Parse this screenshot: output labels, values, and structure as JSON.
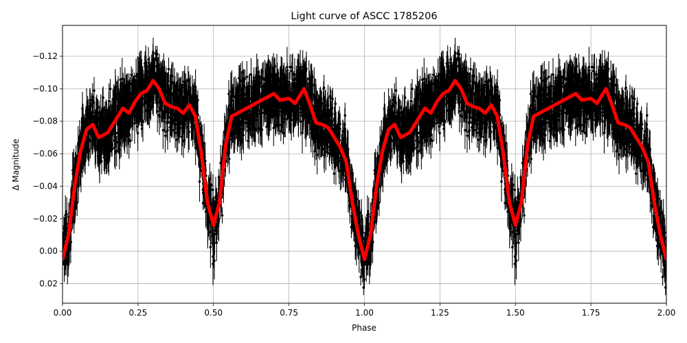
{
  "chart_data": {
    "type": "scatter",
    "title": "Light curve of ASCC 1785206",
    "xlabel": "Phase",
    "ylabel": "Δ Magnitude",
    "xlim": [
      0.0,
      2.0
    ],
    "ylim": [
      0.032,
      -0.139
    ],
    "y_inverted": true,
    "grid": true,
    "legend": null,
    "x_ticks": [
      "0.00",
      "0.25",
      "0.50",
      "0.75",
      "1.00",
      "1.25",
      "1.50",
      "1.75",
      "2.00"
    ],
    "x_tick_values": [
      0.0,
      0.25,
      0.5,
      0.75,
      1.0,
      1.25,
      1.5,
      1.75,
      2.0
    ],
    "y_ticks": [
      "−0.12",
      "−0.10",
      "−0.08",
      "−0.06",
      "−0.04",
      "−0.02",
      "0.00",
      "0.02"
    ],
    "y_tick_values": [
      -0.12,
      -0.1,
      -0.08,
      -0.06,
      -0.04,
      -0.02,
      0.0,
      0.02
    ],
    "series": [
      {
        "name": "observations",
        "style": "black points with error bars",
        "color": "#000000",
        "description": "Dense scatter of phase-folded photometry, spread roughly ±0.02 mag around the model, folded twice over phase 0-2"
      },
      {
        "name": "model fit",
        "style": "thick line",
        "color": "#ff0000",
        "x": [
          0.0,
          0.02,
          0.04,
          0.06,
          0.08,
          0.1,
          0.12,
          0.15,
          0.18,
          0.2,
          0.22,
          0.24,
          0.26,
          0.28,
          0.3,
          0.32,
          0.34,
          0.36,
          0.38,
          0.4,
          0.42,
          0.44,
          0.46,
          0.48,
          0.5,
          0.52,
          0.54,
          0.56,
          0.58,
          0.6,
          0.62,
          0.65,
          0.7,
          0.72,
          0.75,
          0.77,
          0.8,
          0.82,
          0.84,
          0.86,
          0.88,
          0.9,
          0.92,
          0.94,
          0.96,
          0.98,
          1.0,
          1.02,
          1.04,
          1.06,
          1.08,
          1.1,
          1.12,
          1.15,
          1.18,
          1.2,
          1.22,
          1.24,
          1.26,
          1.28,
          1.3,
          1.32,
          1.34,
          1.36,
          1.38,
          1.4,
          1.42,
          1.44,
          1.46,
          1.48,
          1.5,
          1.52,
          1.54,
          1.56,
          1.58,
          1.6,
          1.62,
          1.65,
          1.7,
          1.72,
          1.75,
          1.77,
          1.8,
          1.82,
          1.84,
          1.86,
          1.88,
          1.9,
          1.92,
          1.94,
          1.96,
          1.98,
          2.0
        ],
        "values": [
          0.005,
          -0.01,
          -0.04,
          -0.062,
          -0.075,
          -0.078,
          -0.07,
          -0.073,
          -0.082,
          -0.088,
          -0.085,
          -0.092,
          -0.097,
          -0.099,
          -0.105,
          -0.1,
          -0.091,
          -0.089,
          -0.088,
          -0.085,
          -0.09,
          -0.083,
          -0.06,
          -0.03,
          -0.016,
          -0.03,
          -0.065,
          -0.083,
          -0.085,
          -0.087,
          -0.089,
          -0.092,
          -0.097,
          -0.093,
          -0.094,
          -0.091,
          -0.1,
          -0.09,
          -0.079,
          -0.078,
          -0.076,
          -0.07,
          -0.064,
          -0.055,
          -0.03,
          -0.01,
          0.005,
          -0.01,
          -0.04,
          -0.062,
          -0.075,
          -0.078,
          -0.07,
          -0.073,
          -0.082,
          -0.088,
          -0.085,
          -0.092,
          -0.097,
          -0.099,
          -0.105,
          -0.1,
          -0.091,
          -0.089,
          -0.088,
          -0.085,
          -0.09,
          -0.083,
          -0.06,
          -0.03,
          -0.016,
          -0.03,
          -0.065,
          -0.083,
          -0.085,
          -0.087,
          -0.089,
          -0.092,
          -0.097,
          -0.093,
          -0.094,
          -0.091,
          -0.1,
          -0.09,
          -0.079,
          -0.078,
          -0.076,
          -0.07,
          -0.064,
          -0.055,
          -0.03,
          -0.01,
          0.005
        ]
      }
    ]
  },
  "colors": {
    "background": "#ffffff",
    "grid": "#b0b0b0",
    "points": "#000000",
    "model": "#ff0000",
    "axes": "#000000"
  }
}
